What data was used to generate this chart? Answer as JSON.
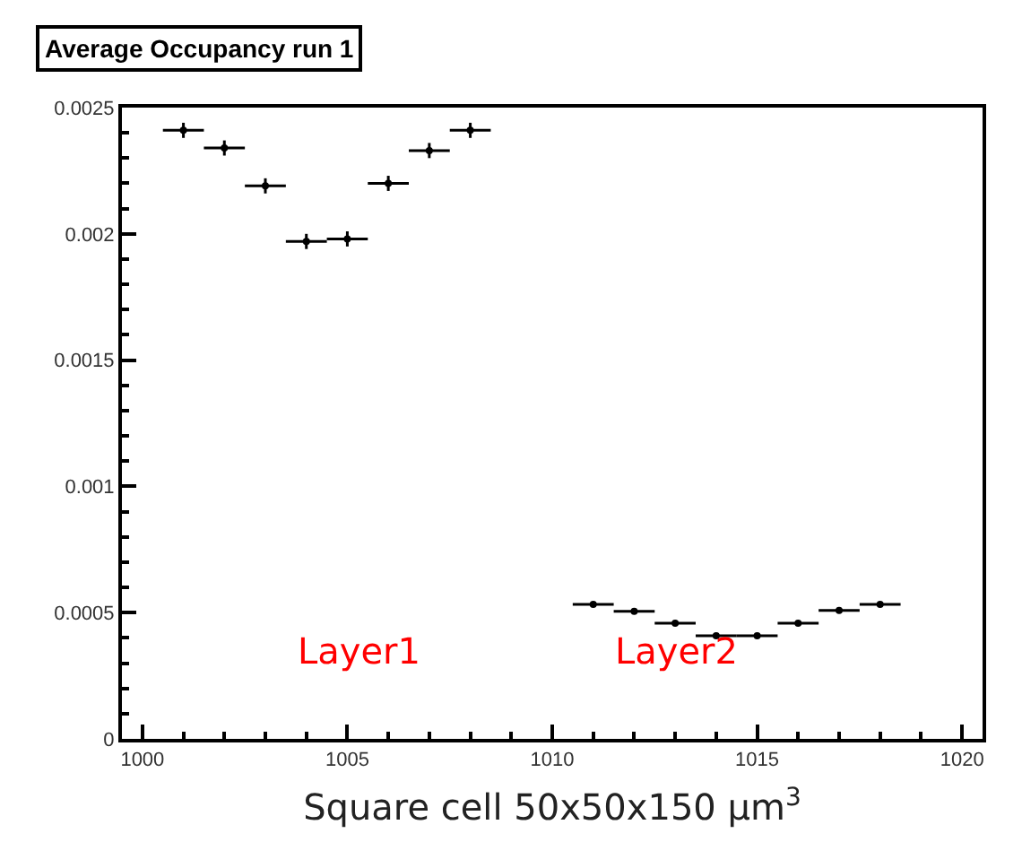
{
  "chart_data": {
    "type": "scatter",
    "title": "Average Occupancy run 1",
    "xlabel": "Square cell 50x50x150 μm$^{3}$",
    "x": [
      1001,
      1002,
      1003,
      1004,
      1005,
      1006,
      1007,
      1008,
      1011,
      1012,
      1013,
      1014,
      1015,
      1016,
      1017,
      1018
    ],
    "values": [
      0.00241,
      0.00234,
      0.00219,
      0.00197,
      0.00198,
      0.0022,
      0.00233,
      0.00241,
      0.000533,
      0.000505,
      0.000458,
      0.000408,
      0.000408,
      0.000458,
      0.000509,
      0.000533
    ],
    "errors": [
      3e-05,
      3e-05,
      3e-05,
      3e-05,
      3e-05,
      3e-05,
      3e-05,
      3e-05,
      1e-05,
      1e-05,
      1e-05,
      1e-05,
      1e-05,
      1e-05,
      1e-05,
      1e-05
    ],
    "xerrors": [
      0.5,
      0.5,
      0.5,
      0.5,
      0.5,
      0.5,
      0.5,
      0.5,
      0.5,
      0.5,
      0.5,
      0.5,
      0.5,
      0.5,
      0.5,
      0.5
    ],
    "color": "#000000",
    "marker": "circle",
    "annotations": [
      "Layer1",
      "Layer2"
    ],
    "xlim": [
      999.5,
      1020.5
    ],
    "xticks": [
      1000,
      1005,
      1010,
      1015,
      1020
    ],
    "ylim": [
      0,
      0.0025
    ],
    "yticks": [
      0,
      0.0005,
      0.001,
      0.0015,
      0.002,
      0.0025
    ],
    "legend": false
  }
}
